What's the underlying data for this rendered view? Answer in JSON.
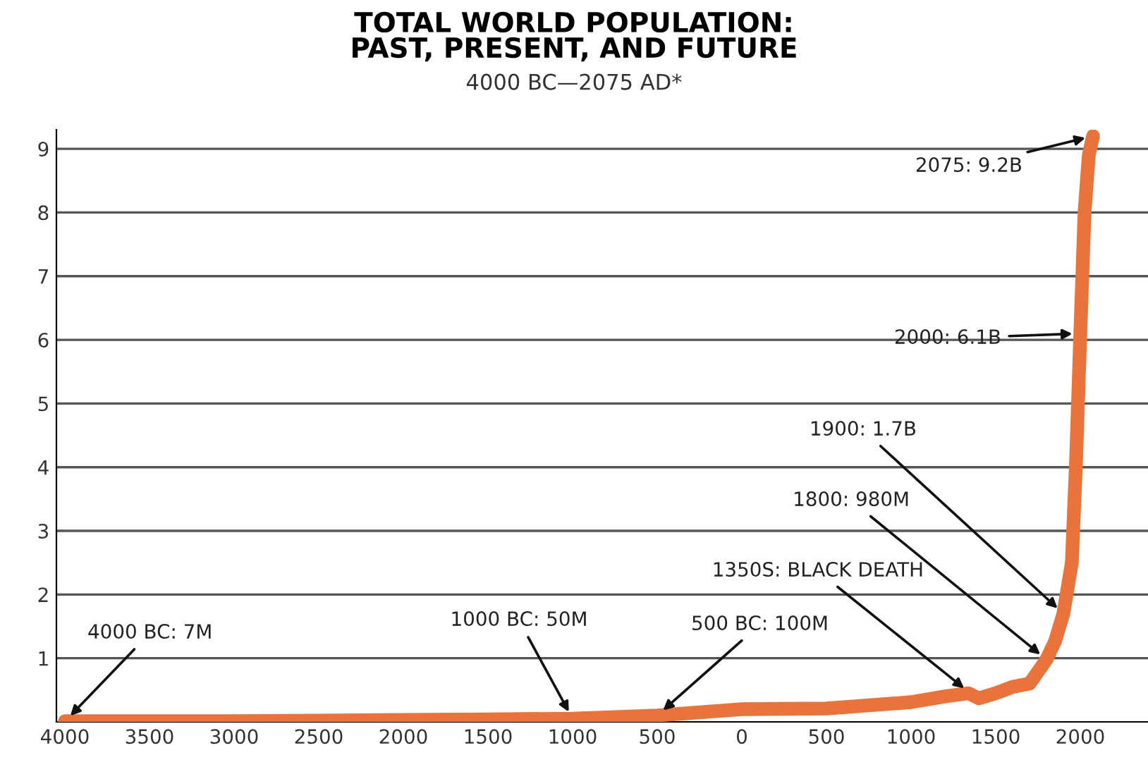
{
  "chart_data": {
    "type": "line",
    "title": "TOTAL WORLD POPULATION:\nPAST, PRESENT, AND FUTURE",
    "subtitle": "4000 BC—2075 AD*",
    "x": [
      -4000,
      -3500,
      -3000,
      -2500,
      -2000,
      -1500,
      -1000,
      -500,
      1,
      500,
      1000,
      1200,
      1340,
      1400,
      1500,
      1600,
      1700,
      1800,
      1850,
      1900,
      1950,
      1975,
      2000,
      2025,
      2050,
      2075
    ],
    "series": [
      {
        "color": "#e8743b",
        "values": [
          0.01,
          0.01,
          0.01,
          0.02,
          0.03,
          0.04,
          0.05,
          0.1,
          0.2,
          0.21,
          0.31,
          0.4,
          0.45,
          0.37,
          0.45,
          0.55,
          0.6,
          0.98,
          1.26,
          1.7,
          2.5,
          4.1,
          6.1,
          8.0,
          8.9,
          9.2
        ]
      }
    ],
    "xlim": [
      -4050,
      2400
    ],
    "ylim": [
      0,
      9.3
    ],
    "xticks": [
      {
        "value": -4000,
        "label": "4000"
      },
      {
        "value": -3500,
        "label": "3500"
      },
      {
        "value": -3000,
        "label": "3000"
      },
      {
        "value": -2500,
        "label": "2500"
      },
      {
        "value": -2000,
        "label": "2000"
      },
      {
        "value": -1500,
        "label": "1500"
      },
      {
        "value": -1000,
        "label": "1000"
      },
      {
        "value": -500,
        "label": "500"
      },
      0,
      500,
      1000,
      1500,
      2000
    ],
    "yticks": [
      1,
      2,
      3,
      4,
      5,
      6,
      7,
      8,
      9
    ],
    "grid": "y",
    "marker": "none",
    "line_style": "solid",
    "legend": false,
    "annotations": [
      {
        "text": "4000 BC: 7M",
        "x": -4000,
        "y": 0.007
      },
      {
        "text": "1000 BC: 50M",
        "x": -1000,
        "y": 0.05
      },
      {
        "text": "500 BC: 100M",
        "x": -500,
        "y": 0.1
      },
      {
        "text": "1350S: BLACK DEATH",
        "x": 1350,
        "y": 0.45
      },
      {
        "text": "1800: 980M",
        "x": 1800,
        "y": 0.98
      },
      {
        "text": "1900: 1.7B",
        "x": 1900,
        "y": 1.7
      },
      {
        "text": "2000: 6.1B",
        "x": 2000,
        "y": 6.1
      },
      {
        "text": "2075: 9.2B",
        "x": 2075,
        "y": 9.2
      }
    ]
  }
}
